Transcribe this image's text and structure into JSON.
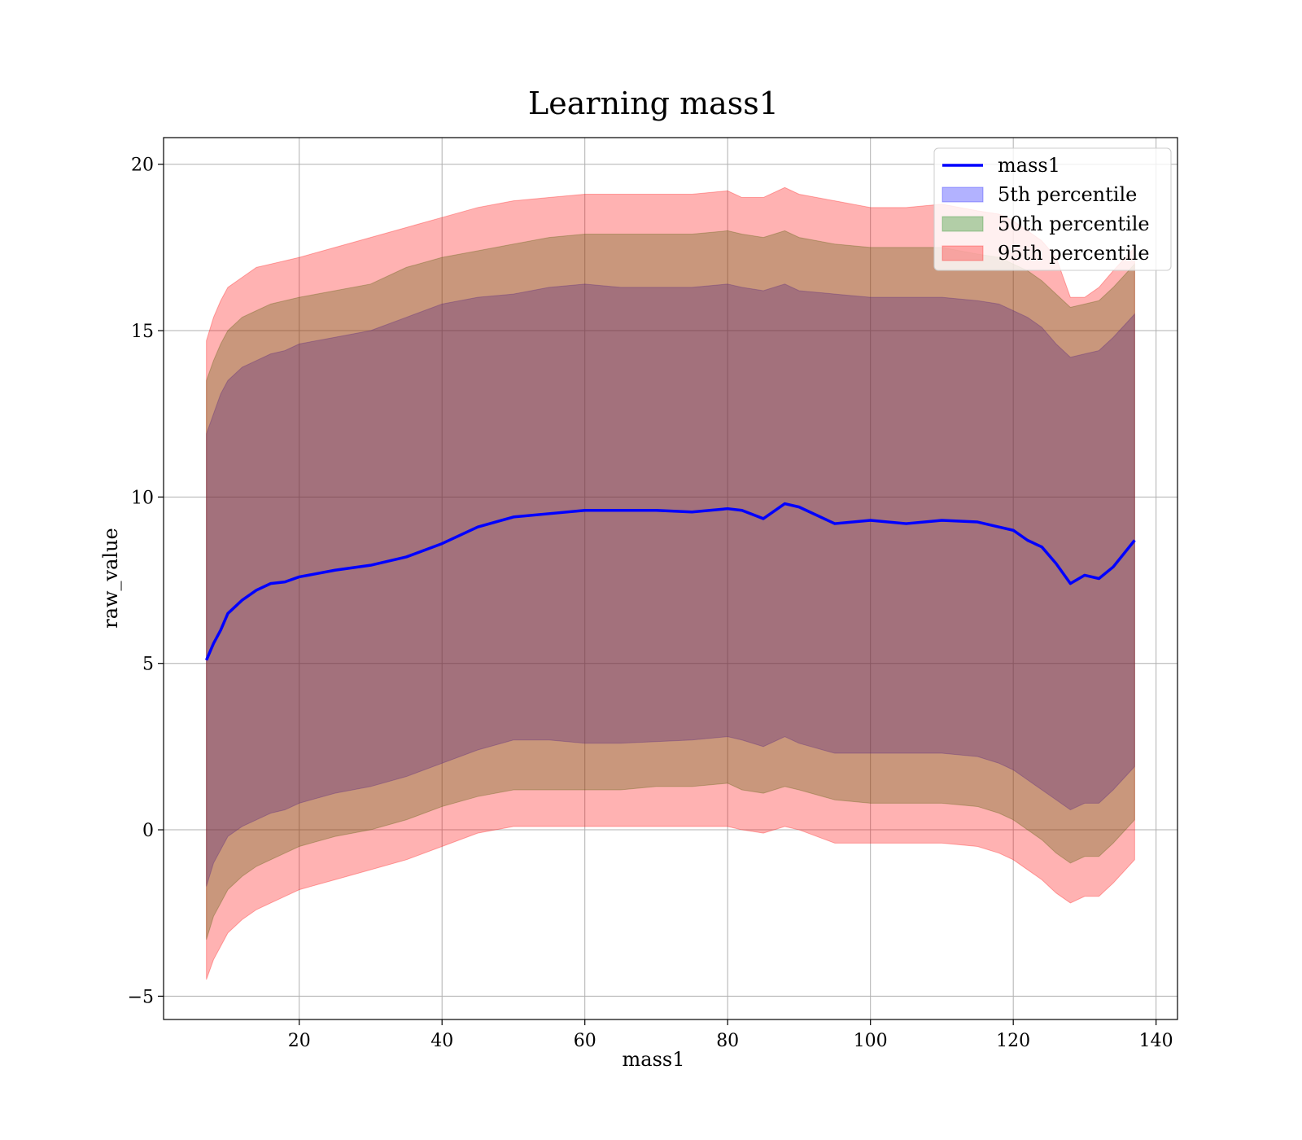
{
  "chart_data": {
    "type": "area",
    "title": "Learning mass1",
    "xlabel": "mass1",
    "ylabel": "raw_value",
    "xlim": [
      1,
      143
    ],
    "ylim": [
      -5.7,
      20.8
    ],
    "xticks": [
      20,
      40,
      60,
      80,
      100,
      120,
      140
    ],
    "yticks": [
      -5,
      0,
      5,
      10,
      15,
      20
    ],
    "grid": true,
    "legend_position": "top-right",
    "x": [
      7,
      8,
      9,
      10,
      12,
      14,
      16,
      18,
      20,
      25,
      30,
      35,
      40,
      45,
      50,
      55,
      60,
      65,
      70,
      75,
      80,
      82,
      85,
      88,
      90,
      95,
      100,
      105,
      110,
      115,
      118,
      120,
      122,
      124,
      126,
      128,
      130,
      132,
      134,
      137
    ],
    "series": [
      {
        "name": "mass1",
        "kind": "line",
        "color": "#0000ff",
        "values": [
          5.1,
          5.6,
          6.0,
          6.5,
          6.9,
          7.2,
          7.4,
          7.45,
          7.6,
          7.8,
          7.95,
          8.2,
          8.6,
          9.1,
          9.4,
          9.5,
          9.6,
          9.6,
          9.6,
          9.55,
          9.65,
          9.6,
          9.35,
          9.8,
          9.7,
          9.2,
          9.3,
          9.2,
          9.3,
          9.25,
          9.1,
          9.0,
          8.7,
          8.5,
          8.0,
          7.4,
          7.65,
          7.55,
          7.9,
          8.7
        ]
      },
      {
        "name": "5th percentile",
        "kind": "band",
        "color": "#0000ff",
        "lower": [
          -1.7,
          -1.0,
          -0.6,
          -0.2,
          0.1,
          0.3,
          0.5,
          0.6,
          0.8,
          1.1,
          1.3,
          1.6,
          2.0,
          2.4,
          2.7,
          2.7,
          2.6,
          2.6,
          2.65,
          2.7,
          2.8,
          2.7,
          2.5,
          2.8,
          2.6,
          2.3,
          2.3,
          2.3,
          2.3,
          2.2,
          2.0,
          1.8,
          1.5,
          1.2,
          0.9,
          0.6,
          0.8,
          0.8,
          1.2,
          1.9
        ],
        "upper": [
          11.9,
          12.5,
          13.1,
          13.5,
          13.9,
          14.1,
          14.3,
          14.4,
          14.6,
          14.8,
          15.0,
          15.4,
          15.8,
          16.0,
          16.1,
          16.3,
          16.4,
          16.3,
          16.3,
          16.3,
          16.4,
          16.3,
          16.2,
          16.4,
          16.2,
          16.1,
          16.0,
          16.0,
          16.0,
          15.9,
          15.8,
          15.6,
          15.4,
          15.1,
          14.6,
          14.2,
          14.3,
          14.4,
          14.8,
          15.5
        ]
      },
      {
        "name": "50th percentile",
        "kind": "band",
        "color": "#008000",
        "lower": [
          -3.3,
          -2.6,
          -2.2,
          -1.8,
          -1.4,
          -1.1,
          -0.9,
          -0.7,
          -0.5,
          -0.2,
          0.0,
          0.3,
          0.7,
          1.0,
          1.2,
          1.2,
          1.2,
          1.2,
          1.3,
          1.3,
          1.4,
          1.2,
          1.1,
          1.3,
          1.2,
          0.9,
          0.8,
          0.8,
          0.8,
          0.7,
          0.5,
          0.3,
          0.0,
          -0.3,
          -0.7,
          -1.0,
          -0.8,
          -0.8,
          -0.4,
          0.3
        ],
        "upper": [
          13.5,
          14.1,
          14.6,
          15.0,
          15.4,
          15.6,
          15.8,
          15.9,
          16.0,
          16.2,
          16.4,
          16.9,
          17.2,
          17.4,
          17.6,
          17.8,
          17.9,
          17.9,
          17.9,
          17.9,
          18.0,
          17.9,
          17.8,
          18.0,
          17.8,
          17.6,
          17.5,
          17.5,
          17.5,
          17.3,
          17.2,
          17.0,
          16.8,
          16.5,
          16.1,
          15.7,
          15.8,
          15.9,
          16.3,
          17.0
        ]
      },
      {
        "name": "95th percentile",
        "kind": "band",
        "color": "#ff0000",
        "lower": [
          -4.5,
          -3.9,
          -3.5,
          -3.1,
          -2.7,
          -2.4,
          -2.2,
          -2.0,
          -1.8,
          -1.5,
          -1.2,
          -0.9,
          -0.5,
          -0.1,
          0.1,
          0.1,
          0.1,
          0.1,
          0.1,
          0.1,
          0.1,
          0.0,
          -0.1,
          0.1,
          0.0,
          -0.4,
          -0.4,
          -0.4,
          -0.4,
          -0.5,
          -0.7,
          -0.9,
          -1.2,
          -1.5,
          -1.9,
          -2.2,
          -2.0,
          -2.0,
          -1.6,
          -0.9
        ],
        "upper": [
          14.7,
          15.4,
          15.9,
          16.3,
          16.6,
          16.9,
          17.0,
          17.1,
          17.2,
          17.5,
          17.8,
          18.1,
          18.4,
          18.7,
          18.9,
          19.0,
          19.1,
          19.1,
          19.1,
          19.1,
          19.2,
          19.0,
          19.0,
          19.3,
          19.1,
          18.9,
          18.7,
          18.7,
          18.8,
          18.6,
          18.5,
          18.3,
          18.0,
          17.7,
          17.2,
          16.0,
          16.0,
          16.3,
          16.8,
          17.5
        ]
      }
    ]
  }
}
